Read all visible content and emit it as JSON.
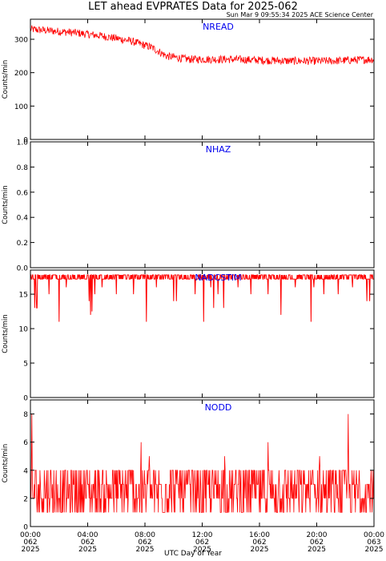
{
  "header": {
    "title": "LET ahead EVPRATES Data for 2025-062",
    "timestamp": "Sun Mar  9 09:55:34 2025 ACE Science Center"
  },
  "chart_data": [
    {
      "type": "line",
      "title": "NREAD",
      "ylabel": "Counts/min",
      "ylim": [
        0,
        360
      ],
      "yticks": [
        0,
        100,
        200,
        300
      ],
      "color": "#ff0000",
      "profile": [
        [
          0,
          330
        ],
        [
          1.5,
          325
        ],
        [
          3,
          320
        ],
        [
          5,
          310
        ],
        [
          7,
          295
        ],
        [
          8.5,
          275
        ],
        [
          9.5,
          250
        ],
        [
          11,
          240
        ],
        [
          14,
          240
        ],
        [
          18,
          235
        ],
        [
          21,
          235
        ],
        [
          24,
          240
        ]
      ],
      "noise": 12
    },
    {
      "type": "line",
      "title": "NHAZ",
      "ylabel": "Counts/min",
      "ylim": [
        0,
        1
      ],
      "yticks": [
        0.0,
        0.2,
        0.4,
        0.6,
        0.8,
        1.0
      ],
      "color": "#ff0000",
      "constant": 0
    },
    {
      "type": "line",
      "title": "NADCSTIM",
      "ylabel": "Counts/min",
      "ylim": [
        0,
        18.5
      ],
      "yticks": [
        0,
        5,
        10,
        15
      ],
      "color": "#ff0000",
      "baseline": 17.5,
      "dips": [
        [
          0.3,
          13
        ],
        [
          0.4,
          15
        ],
        [
          0.45,
          13
        ],
        [
          1.3,
          15
        ],
        [
          2.0,
          11
        ],
        [
          2.5,
          16
        ],
        [
          4.1,
          14
        ],
        [
          4.2,
          12
        ],
        [
          4.3,
          12.5
        ],
        [
          4.5,
          15
        ],
        [
          5.0,
          16
        ],
        [
          6.0,
          15
        ],
        [
          7.2,
          15
        ],
        [
          8.1,
          11
        ],
        [
          8.8,
          16
        ],
        [
          10.0,
          14
        ],
        [
          10.2,
          14
        ],
        [
          11.5,
          15
        ],
        [
          12.1,
          11
        ],
        [
          12.6,
          16
        ],
        [
          12.8,
          13
        ],
        [
          13.1,
          15
        ],
        [
          13.5,
          13
        ],
        [
          14.5,
          16
        ],
        [
          15.4,
          15
        ],
        [
          16.6,
          15
        ],
        [
          17.5,
          12
        ],
        [
          18.5,
          16
        ],
        [
          19.6,
          11
        ],
        [
          19.8,
          16
        ],
        [
          20.5,
          15
        ],
        [
          21.5,
          15
        ],
        [
          22.5,
          16
        ],
        [
          23.5,
          14
        ],
        [
          23.7,
          14
        ]
      ]
    },
    {
      "type": "line",
      "title": "NODD",
      "ylabel": "Counts/min",
      "ylim": [
        0,
        9
      ],
      "yticks": [
        0,
        2,
        4,
        6,
        8
      ],
      "color": "#ff0000",
      "mean": 2.5,
      "max": 8
    }
  ],
  "x_axis": {
    "label": "UTC Day of Year",
    "ticks": [
      {
        "hour": 0,
        "time": "00:00",
        "doy": "062",
        "year": "2025"
      },
      {
        "hour": 4,
        "time": "04:00",
        "doy": "062",
        "year": "2025"
      },
      {
        "hour": 8,
        "time": "08:00",
        "doy": "062",
        "year": "2025"
      },
      {
        "hour": 12,
        "time": "12:00",
        "doy": "062",
        "year": "2025"
      },
      {
        "hour": 16,
        "time": "16:00",
        "doy": "062",
        "year": "2025"
      },
      {
        "hour": 20,
        "time": "20:00",
        "doy": "062",
        "year": "2025"
      },
      {
        "hour": 24,
        "time": "00:00",
        "doy": "063",
        "year": "2025"
      }
    ]
  }
}
